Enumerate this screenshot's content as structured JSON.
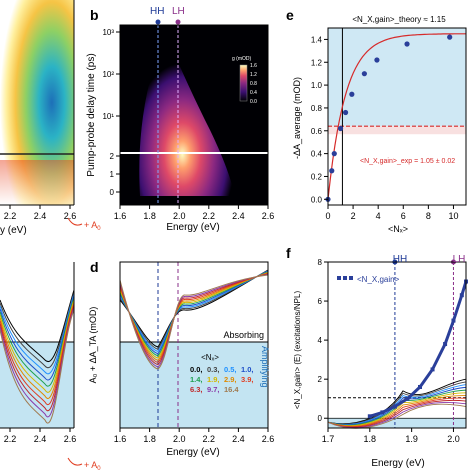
{
  "panel_labels": {
    "b": "b",
    "d": "d",
    "e": "e",
    "f": "f"
  },
  "annotations": {
    "hh": "HH",
    "lh": "LH",
    "plus_a0": "+ A",
    "plus_a0_sub": "0",
    "absorbing": "Absorbing",
    "amplifying": "Amplifying"
  },
  "colors": {
    "hh_marker": "#1e3a96",
    "lh_marker": "#8a2f8a",
    "panel_e_bg": "#cfe8f4",
    "gain_bg": "#c3e4f2",
    "fit_red": "#d62b2b",
    "points_blue": "#2a3f9a"
  },
  "chart_data": [
    {
      "type": "heatmap",
      "panel": "a (partial)",
      "xlabel": "y (eV)",
      "xticks": [
        "2.2",
        "2.4",
        "2.6"
      ],
      "colormap": [
        "#ffffff",
        "#fff0a0",
        "#f6c445",
        "#8ed064",
        "#2bb3c5",
        "#1d6fb8"
      ]
    },
    {
      "type": "heatmap",
      "panel": "b",
      "xlabel": "Energy (eV)",
      "ylabel": "Pump-probe delay time (ps)",
      "xticks": [
        "1.6",
        "1.8",
        "2.0",
        "2.2",
        "2.4",
        "2.6"
      ],
      "yticks_log": [
        "10³",
        "10²",
        "10¹"
      ],
      "yticks_lin": [
        "2",
        "1",
        "0"
      ],
      "colorbar_title": "g (mOD)",
      "colorbar_ticks": [
        "1.6",
        "1.2",
        "0.8",
        "0.4",
        "0.0"
      ],
      "colormap": [
        "#000004",
        "#3b0f70",
        "#8c2981",
        "#de4968",
        "#fe9f6d",
        "#fcfdbf"
      ],
      "markers": {
        "HH": 1.86,
        "LH": 2.0
      }
    },
    {
      "type": "line",
      "panel": "c (partial)",
      "xticks": [
        "2.2",
        "2.4",
        "2.6"
      ]
    },
    {
      "type": "line",
      "panel": "d",
      "xlabel": "Energy (eV)",
      "ylabel": "A₀ + ΔA_TA (mOD)",
      "xticks": [
        "1.6",
        "1.8",
        "2.0",
        "2.2",
        "2.4",
        "2.6"
      ],
      "legend_title": "<Nₓ>",
      "legend": [
        {
          "label": "0.0,",
          "color": "#000000"
        },
        {
          "label": "0.3,",
          "color": "#444444"
        },
        {
          "label": "0.5,",
          "color": "#1e90ff"
        },
        {
          "label": "1.0,",
          "color": "#1e4fc8"
        },
        {
          "label": "1.4,",
          "color": "#20a050"
        },
        {
          "label": "1.9,",
          "color": "#d4b800"
        },
        {
          "label": "2.9,",
          "color": "#e08a00"
        },
        {
          "label": "3.9,",
          "color": "#e03d20"
        },
        {
          "label": "6.3,",
          "color": "#c0282a"
        },
        {
          "label": "9.7,",
          "color": "#8a3aa8"
        },
        {
          "label": "16.4",
          "color": "#a07a50"
        }
      ]
    },
    {
      "type": "scatter",
      "panel": "e",
      "xlabel": "<Nₓ>",
      "ylabel": "-ΔA_average (mOD)",
      "title_above": "<N_X,gain>_theory ≈ 1.15",
      "exp_label": "<N_X,gain>_exp = 1.05 ± 0.02",
      "xticks": [
        "0",
        "2",
        "4",
        "6",
        "8",
        "10"
      ],
      "yticks": [
        "0.0",
        "0.2",
        "0.4",
        "0.6",
        "0.8",
        "1.0",
        "1.2",
        "1.4"
      ],
      "xlim": [
        0,
        11
      ],
      "ylim": [
        -0.05,
        1.5
      ],
      "x": [
        0.0,
        0.3,
        0.5,
        1.0,
        1.4,
        1.9,
        2.9,
        3.9,
        6.3,
        9.7
      ],
      "y": [
        0.0,
        0.25,
        0.4,
        0.62,
        0.76,
        0.92,
        1.1,
        1.22,
        1.36,
        1.42
      ],
      "threshold": 0.64,
      "vline": 1.15
    },
    {
      "type": "line",
      "panel": "f",
      "xlabel": "Energy (eV)",
      "ylabel": "<N_X,gain> (E) (excitations/NPL)",
      "legend_label": "<N_X,gain>",
      "xticks": [
        "1.7",
        "1.8",
        "1.9",
        "2.0"
      ],
      "yticks": [
        "0",
        "2",
        "4",
        "6",
        "8"
      ],
      "xlim": [
        1.7,
        2.03
      ],
      "ylim": [
        -0.5,
        8
      ],
      "threshold": 1.05,
      "markers": {
        "HH": 1.86,
        "LH": 2.0
      },
      "x": [
        1.8,
        1.83,
        1.86,
        1.89,
        1.92,
        1.95,
        1.98,
        2.0,
        2.02,
        2.03
      ],
      "y": [
        0.1,
        0.3,
        0.6,
        1.0,
        1.6,
        2.5,
        3.8,
        5.0,
        6.3,
        7.0
      ]
    }
  ]
}
